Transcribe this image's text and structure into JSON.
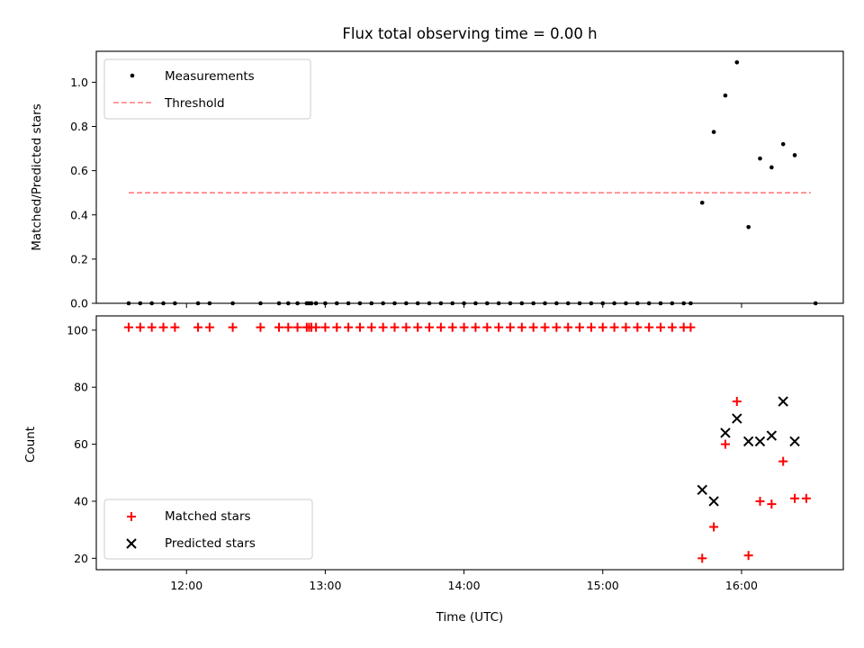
{
  "chart_data": [
    {
      "type": "scatter",
      "title": "Flux total observing time = 0.00 h",
      "xlabel": "",
      "ylabel": "Matched/Predicted stars",
      "xlim": [
        "11:21",
        "16:44"
      ],
      "ylim": [
        0,
        1.14
      ],
      "yticks": [
        0.0,
        0.2,
        0.4,
        0.6,
        0.8,
        1.0
      ],
      "ytick_labels": [
        "0.0",
        "0.2",
        "0.4",
        "0.6",
        "0.8",
        "1.0"
      ],
      "legend_position": "upper-left",
      "series": [
        {
          "name": "Measurements",
          "kind": "points",
          "color": "#000000",
          "x": [
            "11:35",
            "11:40",
            "11:45",
            "11:50",
            "11:55",
            "12:05",
            "12:10",
            "12:20",
            "12:32",
            "12:40",
            "12:44",
            "12:48",
            "12:52",
            "12:53",
            "12:54",
            "12:56",
            "13:00",
            "13:05",
            "13:10",
            "13:15",
            "13:20",
            "13:25",
            "13:30",
            "13:35",
            "13:40",
            "13:45",
            "13:50",
            "13:55",
            "14:00",
            "14:05",
            "14:10",
            "14:15",
            "14:20",
            "14:25",
            "14:30",
            "14:35",
            "14:40",
            "14:45",
            "14:50",
            "14:55",
            "15:00",
            "15:05",
            "15:10",
            "15:15",
            "15:20",
            "15:25",
            "15:30",
            "15:35",
            "15:38",
            "16:32"
          ],
          "y": [
            0,
            0,
            0,
            0,
            0,
            0,
            0,
            0,
            0,
            0,
            0,
            0,
            0,
            0,
            0,
            0,
            0,
            0,
            0,
            0,
            0,
            0,
            0,
            0,
            0,
            0,
            0,
            0,
            0,
            0,
            0,
            0,
            0,
            0,
            0,
            0,
            0,
            0,
            0,
            0,
            0,
            0,
            0,
            0,
            0,
            0,
            0,
            0,
            0,
            0
          ]
        },
        {
          "name": "",
          "kind": "points",
          "color": "#000000",
          "x": [
            "15:43",
            "15:48",
            "15:53",
            "15:58",
            "16:03",
            "16:08",
            "16:13",
            "16:18",
            "16:23"
          ],
          "y": [
            0.455,
            0.775,
            0.94,
            1.09,
            0.345,
            0.655,
            0.615,
            0.72,
            0.67
          ]
        },
        {
          "name": "Threshold",
          "kind": "dashed-line",
          "color": "#ff7f7f",
          "x": [
            "11:35",
            "16:30"
          ],
          "y": [
            0.5,
            0.5
          ]
        }
      ]
    },
    {
      "type": "scatter",
      "title": "",
      "xlabel": "Time (UTC)",
      "ylabel": "Count",
      "xlim": [
        "11:21",
        "16:44"
      ],
      "ylim": [
        16,
        105
      ],
      "xticks": [
        "12:00",
        "13:00",
        "14:00",
        "15:00",
        "16:00"
      ],
      "xtick_labels": [
        "12:00",
        "13:00",
        "14:00",
        "15:00",
        "16:00"
      ],
      "yticks": [
        20,
        40,
        60,
        80,
        100
      ],
      "ytick_labels": [
        "20",
        "40",
        "60",
        "80",
        "100"
      ],
      "legend_position": "lower-left",
      "series": [
        {
          "name": "Matched stars",
          "marker": "plus",
          "color": "#ff0000",
          "x": [
            "11:35",
            "11:40",
            "11:45",
            "11:50",
            "11:55",
            "12:05",
            "12:10",
            "12:20",
            "12:32",
            "12:40",
            "12:44",
            "12:48",
            "12:52",
            "12:53",
            "12:54",
            "12:56",
            "13:00",
            "13:05",
            "13:10",
            "13:15",
            "13:20",
            "13:25",
            "13:30",
            "13:35",
            "13:40",
            "13:45",
            "13:50",
            "13:55",
            "14:00",
            "14:05",
            "14:10",
            "14:15",
            "14:20",
            "14:25",
            "14:30",
            "14:35",
            "14:40",
            "14:45",
            "14:50",
            "14:55",
            "15:00",
            "15:05",
            "15:10",
            "15:15",
            "15:20",
            "15:25",
            "15:30",
            "15:35",
            "15:38",
            "15:43",
            "15:48",
            "15:53",
            "15:58",
            "16:03",
            "16:08",
            "16:13",
            "16:18",
            "16:23",
            "16:28"
          ],
          "y": [
            101,
            101,
            101,
            101,
            101,
            101,
            101,
            101,
            101,
            101,
            101,
            101,
            101,
            101,
            101,
            101,
            101,
            101,
            101,
            101,
            101,
            101,
            101,
            101,
            101,
            101,
            101,
            101,
            101,
            101,
            101,
            101,
            101,
            101,
            101,
            101,
            101,
            101,
            101,
            101,
            101,
            101,
            101,
            101,
            101,
            101,
            101,
            101,
            101,
            20,
            31,
            60,
            75,
            21,
            40,
            39,
            54,
            41,
            41
          ]
        },
        {
          "name": "Predicted stars",
          "marker": "x",
          "color": "#000000",
          "x": [
            "15:43",
            "15:48",
            "15:53",
            "15:58",
            "16:03",
            "16:08",
            "16:13",
            "16:18",
            "16:23"
          ],
          "y": [
            44,
            40,
            64,
            69,
            61,
            61,
            63,
            75,
            61
          ]
        }
      ]
    }
  ]
}
